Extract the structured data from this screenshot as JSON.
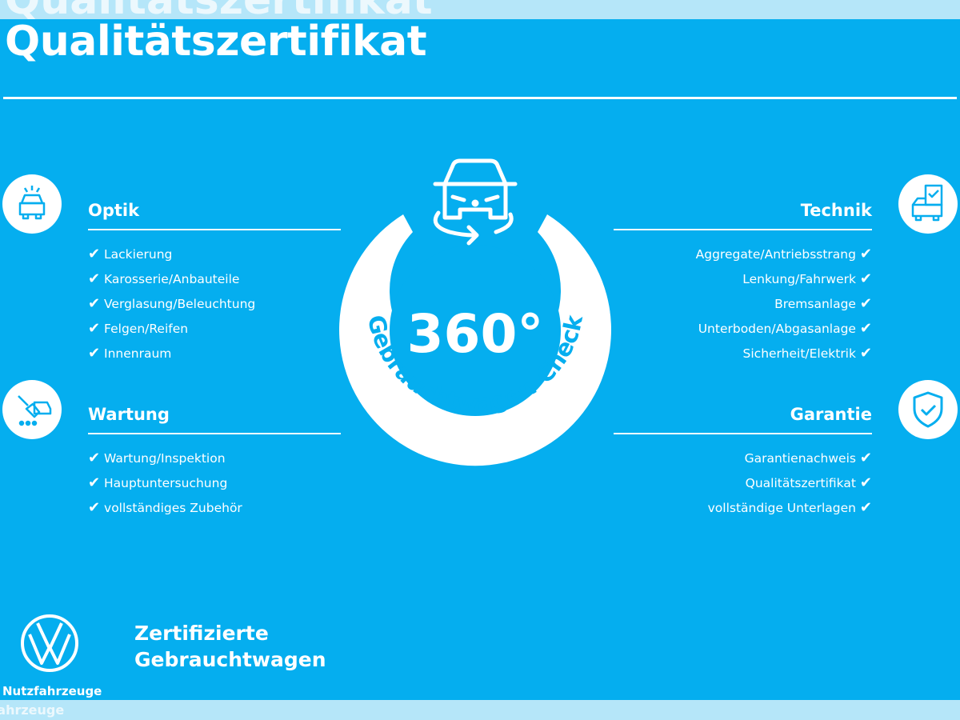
{
  "header": {
    "title": "Qualitätszertifikat"
  },
  "badge": {
    "degrees": "360°",
    "arc_text": "Gebrauchtwagen-Check",
    "icon": "car-360-rotate-icon"
  },
  "sections": {
    "optik": {
      "title": "Optik",
      "icon": "car-front-icon",
      "items": [
        "Lackierung",
        "Karosserie/Anbauteile",
        "Verglasung/Beleuchtung",
        "Felgen/Reifen",
        "Innenraum"
      ]
    },
    "wartung": {
      "title": "Wartung",
      "icon": "service-tools-icon",
      "items": [
        "Wartung/Inspektion",
        "Hauptuntersuchung",
        "vollständiges Zubehör"
      ]
    },
    "technik": {
      "title": "Technik",
      "icon": "car-checklist-icon",
      "items": [
        "Aggregate/Antriebsstrang",
        "Lenkung/Fahrwerk",
        "Bremsanlage",
        "Unterboden/Abgasanlage",
        "Sicherheit/Elektrik"
      ]
    },
    "garantie": {
      "title": "Garantie",
      "icon": "shield-check-icon",
      "items": [
        "Garantienachweis",
        "Qualitätszertifikat",
        "vollständige Unterlagen"
      ]
    }
  },
  "check_mark": "✔",
  "footer": {
    "brand": "Nutzfahrzeuge",
    "claim_line1": "Zertifizierte",
    "claim_line2": "Gebrauchtwagen",
    "brand_partial": "zfahrzeuge"
  },
  "colors": {
    "background": "#05aeef",
    "strip": "#b5e6f9",
    "foreground": "#ffffff"
  }
}
